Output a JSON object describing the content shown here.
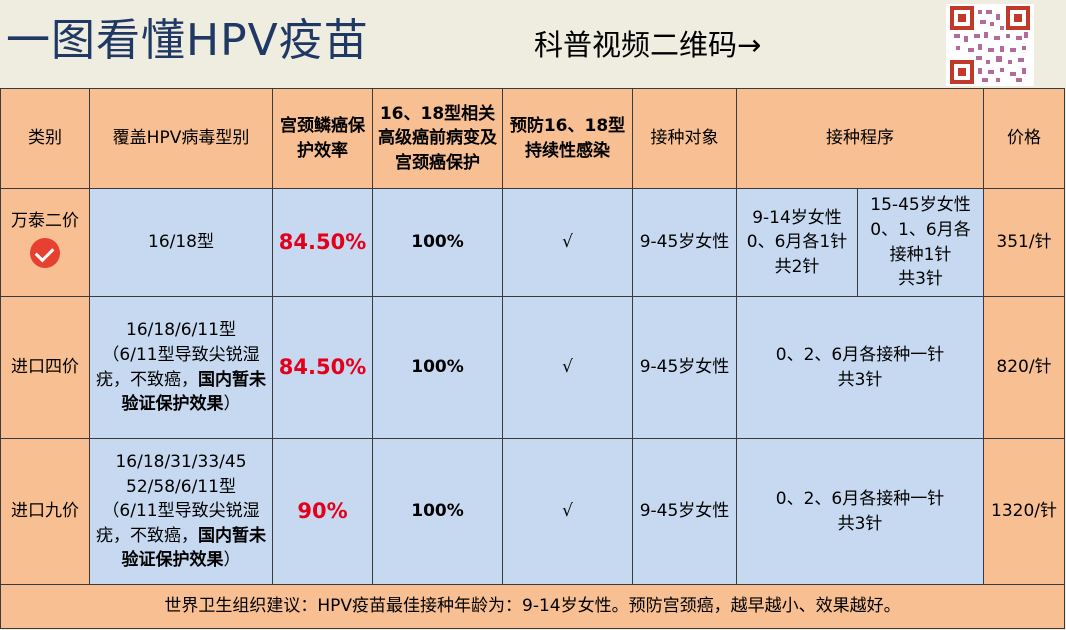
{
  "header": {
    "title": "一图看懂HPV疫苗",
    "qr_caption": "科普视频二维码→"
  },
  "table": {
    "headers": {
      "category": "类别",
      "types": "覆盖HPV病毒型别",
      "efficacy": "宫颈鳞癌保护效率",
      "protection": "16、18型相关高级癌前病变及宫颈癌保护",
      "prevention": "预防16、18型持续性感染",
      "target": "接种对象",
      "schedule": "接种程序",
      "price": "价格"
    },
    "rows": [
      {
        "category": "万泰二价",
        "types": "16/18型",
        "efficacy": "84.50%",
        "protection": "100%",
        "prevention": "√",
        "target": "9-45岁女性",
        "schedule_a": [
          "9-14岁女性",
          "0、6月各1针",
          "共2针"
        ],
        "schedule_b": [
          "15-45岁女性",
          "0、1、6月各",
          "接种1针",
          "共3针"
        ],
        "price": "351/针"
      },
      {
        "category": "进口四价",
        "types_line1": "16/18/6/11型",
        "types_note": "（6/11型导致尖锐湿疣，不致癌，",
        "types_bold": "国内暂未验证保护效果",
        "types_end": "）",
        "efficacy": "84.50%",
        "protection": "100%",
        "prevention": "√",
        "target": "9-45岁女性",
        "schedule": [
          "0、2、6月各接种一针",
          "共3针"
        ],
        "price": "820/针"
      },
      {
        "category": "进口九价",
        "types_line1": "16/18/31/33/45",
        "types_line2": "52/58/6/11型",
        "types_note": "（6/11型导致尖锐湿疣，不致癌，",
        "types_bold": "国内暂未验证保护效果",
        "types_end": "）",
        "efficacy": "90%",
        "protection": "100%",
        "prevention": "√",
        "target": "9-45岁女性",
        "schedule": [
          "0、2、6月各接种一针",
          "共3针"
        ],
        "price": "1320/针"
      }
    ],
    "footer": "世界卫生组织建议：HPV疫苗最佳接种年龄为：9-14岁女性。预防宫颈癌，越早越小、效果越好。"
  },
  "colors": {
    "header_bg": "#f7bf92",
    "body_bg": "#c6d9f0",
    "title_color": "#1f3864",
    "highlight_red": "#e3001b"
  },
  "icons": [
    "qr-code-icon",
    "check-circle-icon"
  ]
}
